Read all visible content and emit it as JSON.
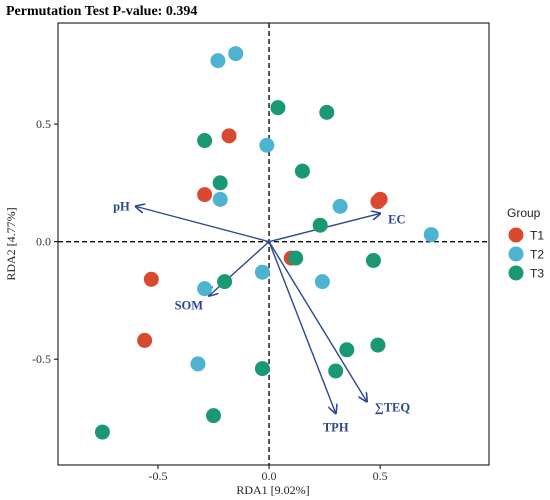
{
  "chart_data": {
    "type": "scatter",
    "title": "Permutation Test P-value: 0.394",
    "xlabel": "RDA1 [9.02%]",
    "ylabel": "RDA2 [4.77%]",
    "xlim": [
      -0.95,
      0.99
    ],
    "ylim": [
      -0.95,
      0.93
    ],
    "x_ticks": [
      -0.5,
      0.0,
      0.5
    ],
    "x_tick_labels": [
      "-0.5",
      "0.0",
      "0.5"
    ],
    "y_ticks": [
      -0.5,
      0.0,
      0.5
    ],
    "y_tick_labels": [
      "-0.5",
      "0.0",
      "0.5"
    ],
    "grid": false,
    "legend": {
      "title": "Group",
      "position": "right"
    },
    "reference_lines": {
      "x": 0,
      "y": 0,
      "style": "dashed"
    },
    "series": [
      {
        "name": "T1",
        "color": "#d9492f",
        "points": [
          [
            -0.18,
            0.45
          ],
          [
            -0.29,
            0.2
          ],
          [
            -0.53,
            -0.16
          ],
          [
            -0.56,
            -0.42
          ],
          [
            0.1,
            -0.07
          ],
          [
            0.5,
            0.18
          ],
          [
            0.49,
            0.17
          ]
        ]
      },
      {
        "name": "T2",
        "color": "#4cb3d0",
        "points": [
          [
            -0.23,
            0.77
          ],
          [
            -0.15,
            0.8
          ],
          [
            -0.01,
            0.41
          ],
          [
            -0.22,
            0.18
          ],
          [
            0.32,
            0.15
          ],
          [
            0.73,
            0.03
          ],
          [
            -0.03,
            -0.13
          ],
          [
            0.24,
            -0.17
          ],
          [
            -0.29,
            -0.2
          ],
          [
            -0.32,
            -0.52
          ]
        ]
      },
      {
        "name": "T3",
        "color": "#1a9873",
        "points": [
          [
            0.04,
            0.57
          ],
          [
            0.26,
            0.55
          ],
          [
            -0.29,
            0.43
          ],
          [
            0.15,
            0.3
          ],
          [
            -0.22,
            0.25
          ],
          [
            0.23,
            0.07
          ],
          [
            0.12,
            -0.07
          ],
          [
            0.47,
            -0.08
          ],
          [
            -0.2,
            -0.17
          ],
          [
            0.35,
            -0.46
          ],
          [
            0.49,
            -0.44
          ],
          [
            -0.03,
            -0.54
          ],
          [
            0.3,
            -0.55
          ],
          [
            -0.25,
            -0.74
          ],
          [
            -0.75,
            -0.81
          ]
        ]
      }
    ],
    "arrows": [
      {
        "label": "pH",
        "x": -0.6,
        "y": 0.15,
        "label_pos": "left"
      },
      {
        "label": "EC",
        "x": 0.5,
        "y": 0.12,
        "label_pos": "below-right"
      },
      {
        "label": "SOM",
        "x": -0.27,
        "y": -0.23,
        "label_pos": "below-left"
      },
      {
        "label": "TPH",
        "x": 0.3,
        "y": -0.73,
        "label_pos": "below"
      },
      {
        "label": "∑TEQ",
        "x": 0.44,
        "y": -0.68,
        "label_pos": "below-right"
      }
    ],
    "arrow_color": "#2b4790"
  }
}
